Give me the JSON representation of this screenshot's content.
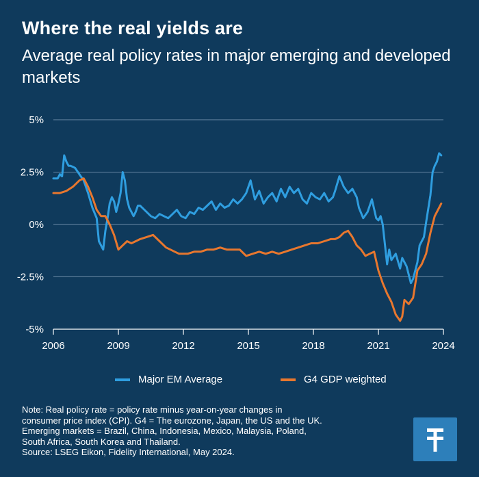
{
  "title": "Where the real yields are",
  "subtitle": "Average real policy rates in major emerging and developed markets",
  "legend": [
    {
      "label": "Major EM Average",
      "color": "#2f9ee0"
    },
    {
      "label": "G4 GDP weighted",
      "color": "#e8772e"
    }
  ],
  "note": [
    "Note: Real policy rate = policy rate minus year-on-year changes in",
    "consumer price index (CPI). G4 = The eurozone, Japan, the US and the UK.",
    "Emerging markets = Brazil, China, Indonesia, Mexico, Malaysia, Poland,",
    "South Africa, South Korea and Thailand.",
    "Source: LSEG Eikon, Fidelity International, May 2024."
  ],
  "logo_icon": "fidelity-logo-icon",
  "chart_data": {
    "type": "line",
    "xlabel": "",
    "ylabel": "",
    "xlim": [
      2006,
      2024
    ],
    "ylim": [
      -5,
      5
    ],
    "xticks": [
      2006,
      2009,
      2012,
      2015,
      2018,
      2021,
      2024
    ],
    "yticks": [
      5,
      2.5,
      0,
      -2.5,
      -5
    ],
    "ytick_labels": [
      "5%",
      "2.5%",
      "0%",
      "-2.5%",
      "-5%"
    ],
    "grid": "horizontal",
    "legend_position": "bottom",
    "series": [
      {
        "name": "Major EM Average",
        "color": "#2f9ee0",
        "x": [
          2006.0,
          2006.2,
          2006.3,
          2006.4,
          2006.5,
          2006.6,
          2006.7,
          2006.8,
          2007.0,
          2007.2,
          2007.4,
          2007.6,
          2007.8,
          2008.0,
          2008.1,
          2008.3,
          2008.4,
          2008.5,
          2008.6,
          2008.7,
          2008.8,
          2008.9,
          2009.0,
          2009.1,
          2009.2,
          2009.3,
          2009.4,
          2009.5,
          2009.6,
          2009.7,
          2009.8,
          2009.9,
          2010.0,
          2010.2,
          2010.4,
          2010.5,
          2010.7,
          2010.9,
          2011.1,
          2011.3,
          2011.5,
          2011.7,
          2011.9,
          2012.1,
          2012.3,
          2012.5,
          2012.7,
          2012.9,
          2013.1,
          2013.3,
          2013.5,
          2013.7,
          2013.9,
          2014.1,
          2014.3,
          2014.5,
          2014.7,
          2014.9,
          2015.1,
          2015.3,
          2015.5,
          2015.7,
          2015.9,
          2016.1,
          2016.3,
          2016.5,
          2016.7,
          2016.9,
          2017.1,
          2017.3,
          2017.5,
          2017.7,
          2017.9,
          2018.1,
          2018.3,
          2018.5,
          2018.7,
          2018.9,
          2019.0,
          2019.2,
          2019.4,
          2019.6,
          2019.8,
          2020.0,
          2020.1,
          2020.3,
          2020.5,
          2020.7,
          2020.9,
          2021.0,
          2021.1,
          2021.2,
          2021.4,
          2021.5,
          2021.6,
          2021.8,
          2022.0,
          2022.1,
          2022.3,
          2022.5,
          2022.6,
          2022.8,
          2022.9,
          2023.1,
          2023.2,
          2023.4,
          2023.5,
          2023.6,
          2023.7,
          2023.8,
          2023.9
        ],
        "values": [
          2.2,
          2.2,
          2.4,
          2.3,
          3.3,
          3.0,
          2.8,
          2.8,
          2.7,
          2.4,
          2.1,
          1.5,
          0.8,
          0.3,
          -0.8,
          -1.2,
          -0.3,
          0.3,
          1.0,
          1.3,
          1.1,
          0.6,
          1.0,
          1.5,
          2.5,
          2.1,
          1.2,
          0.8,
          0.6,
          0.4,
          0.6,
          0.9,
          0.9,
          0.7,
          0.5,
          0.4,
          0.3,
          0.5,
          0.4,
          0.3,
          0.5,
          0.7,
          0.4,
          0.3,
          0.6,
          0.5,
          0.8,
          0.7,
          0.9,
          1.1,
          0.7,
          1.0,
          0.8,
          0.9,
          1.2,
          1.0,
          1.2,
          1.5,
          2.1,
          1.2,
          1.6,
          1.0,
          1.3,
          1.5,
          1.1,
          1.7,
          1.3,
          1.8,
          1.5,
          1.7,
          1.2,
          1.0,
          1.5,
          1.3,
          1.2,
          1.5,
          1.1,
          1.3,
          1.6,
          2.3,
          1.8,
          1.5,
          1.7,
          1.3,
          0.8,
          0.3,
          0.6,
          1.2,
          0.3,
          0.2,
          0.4,
          0.0,
          -1.9,
          -1.2,
          -1.7,
          -1.4,
          -2.1,
          -1.6,
          -2.0,
          -2.8,
          -2.6,
          -1.8,
          -1.0,
          -0.6,
          0.1,
          1.4,
          2.5,
          2.8,
          3.0,
          3.4,
          3.3
        ]
      },
      {
        "name": "G4 GDP weighted",
        "color": "#e8772e",
        "x": [
          2006.0,
          2006.3,
          2006.6,
          2006.9,
          2007.2,
          2007.4,
          2007.6,
          2007.8,
          2008.0,
          2008.2,
          2008.4,
          2008.6,
          2008.8,
          2009.0,
          2009.2,
          2009.4,
          2009.6,
          2009.8,
          2010.0,
          2010.3,
          2010.6,
          2010.9,
          2011.2,
          2011.4,
          2011.6,
          2011.8,
          2012.0,
          2012.2,
          2012.5,
          2012.8,
          2013.1,
          2013.4,
          2013.7,
          2014.0,
          2014.3,
          2014.6,
          2014.9,
          2015.2,
          2015.5,
          2015.8,
          2016.1,
          2016.4,
          2016.7,
          2017.0,
          2017.3,
          2017.6,
          2017.9,
          2018.2,
          2018.5,
          2018.8,
          2019.0,
          2019.2,
          2019.4,
          2019.6,
          2019.8,
          2020.0,
          2020.2,
          2020.4,
          2020.6,
          2020.8,
          2021.0,
          2021.2,
          2021.4,
          2021.6,
          2021.8,
          2022.0,
          2022.1,
          2022.2,
          2022.4,
          2022.6,
          2022.8,
          2023.0,
          2023.2,
          2023.4,
          2023.6,
          2023.8,
          2023.9
        ],
        "values": [
          1.5,
          1.5,
          1.6,
          1.8,
          2.1,
          2.2,
          1.8,
          1.3,
          0.7,
          0.4,
          0.4,
          0.0,
          -0.5,
          -1.2,
          -1.0,
          -0.8,
          -0.9,
          -0.8,
          -0.7,
          -0.6,
          -0.5,
          -0.8,
          -1.1,
          -1.2,
          -1.3,
          -1.4,
          -1.4,
          -1.4,
          -1.3,
          -1.3,
          -1.2,
          -1.2,
          -1.1,
          -1.2,
          -1.2,
          -1.2,
          -1.5,
          -1.4,
          -1.3,
          -1.4,
          -1.3,
          -1.4,
          -1.3,
          -1.2,
          -1.1,
          -1.0,
          -0.9,
          -0.9,
          -0.8,
          -0.7,
          -0.7,
          -0.6,
          -0.4,
          -0.3,
          -0.6,
          -1.0,
          -1.2,
          -1.5,
          -1.4,
          -1.3,
          -2.2,
          -2.8,
          -3.3,
          -3.7,
          -4.3,
          -4.6,
          -4.4,
          -3.6,
          -3.8,
          -3.5,
          -2.2,
          -1.9,
          -1.4,
          -0.4,
          0.4,
          0.8,
          1.0
        ]
      }
    ]
  }
}
